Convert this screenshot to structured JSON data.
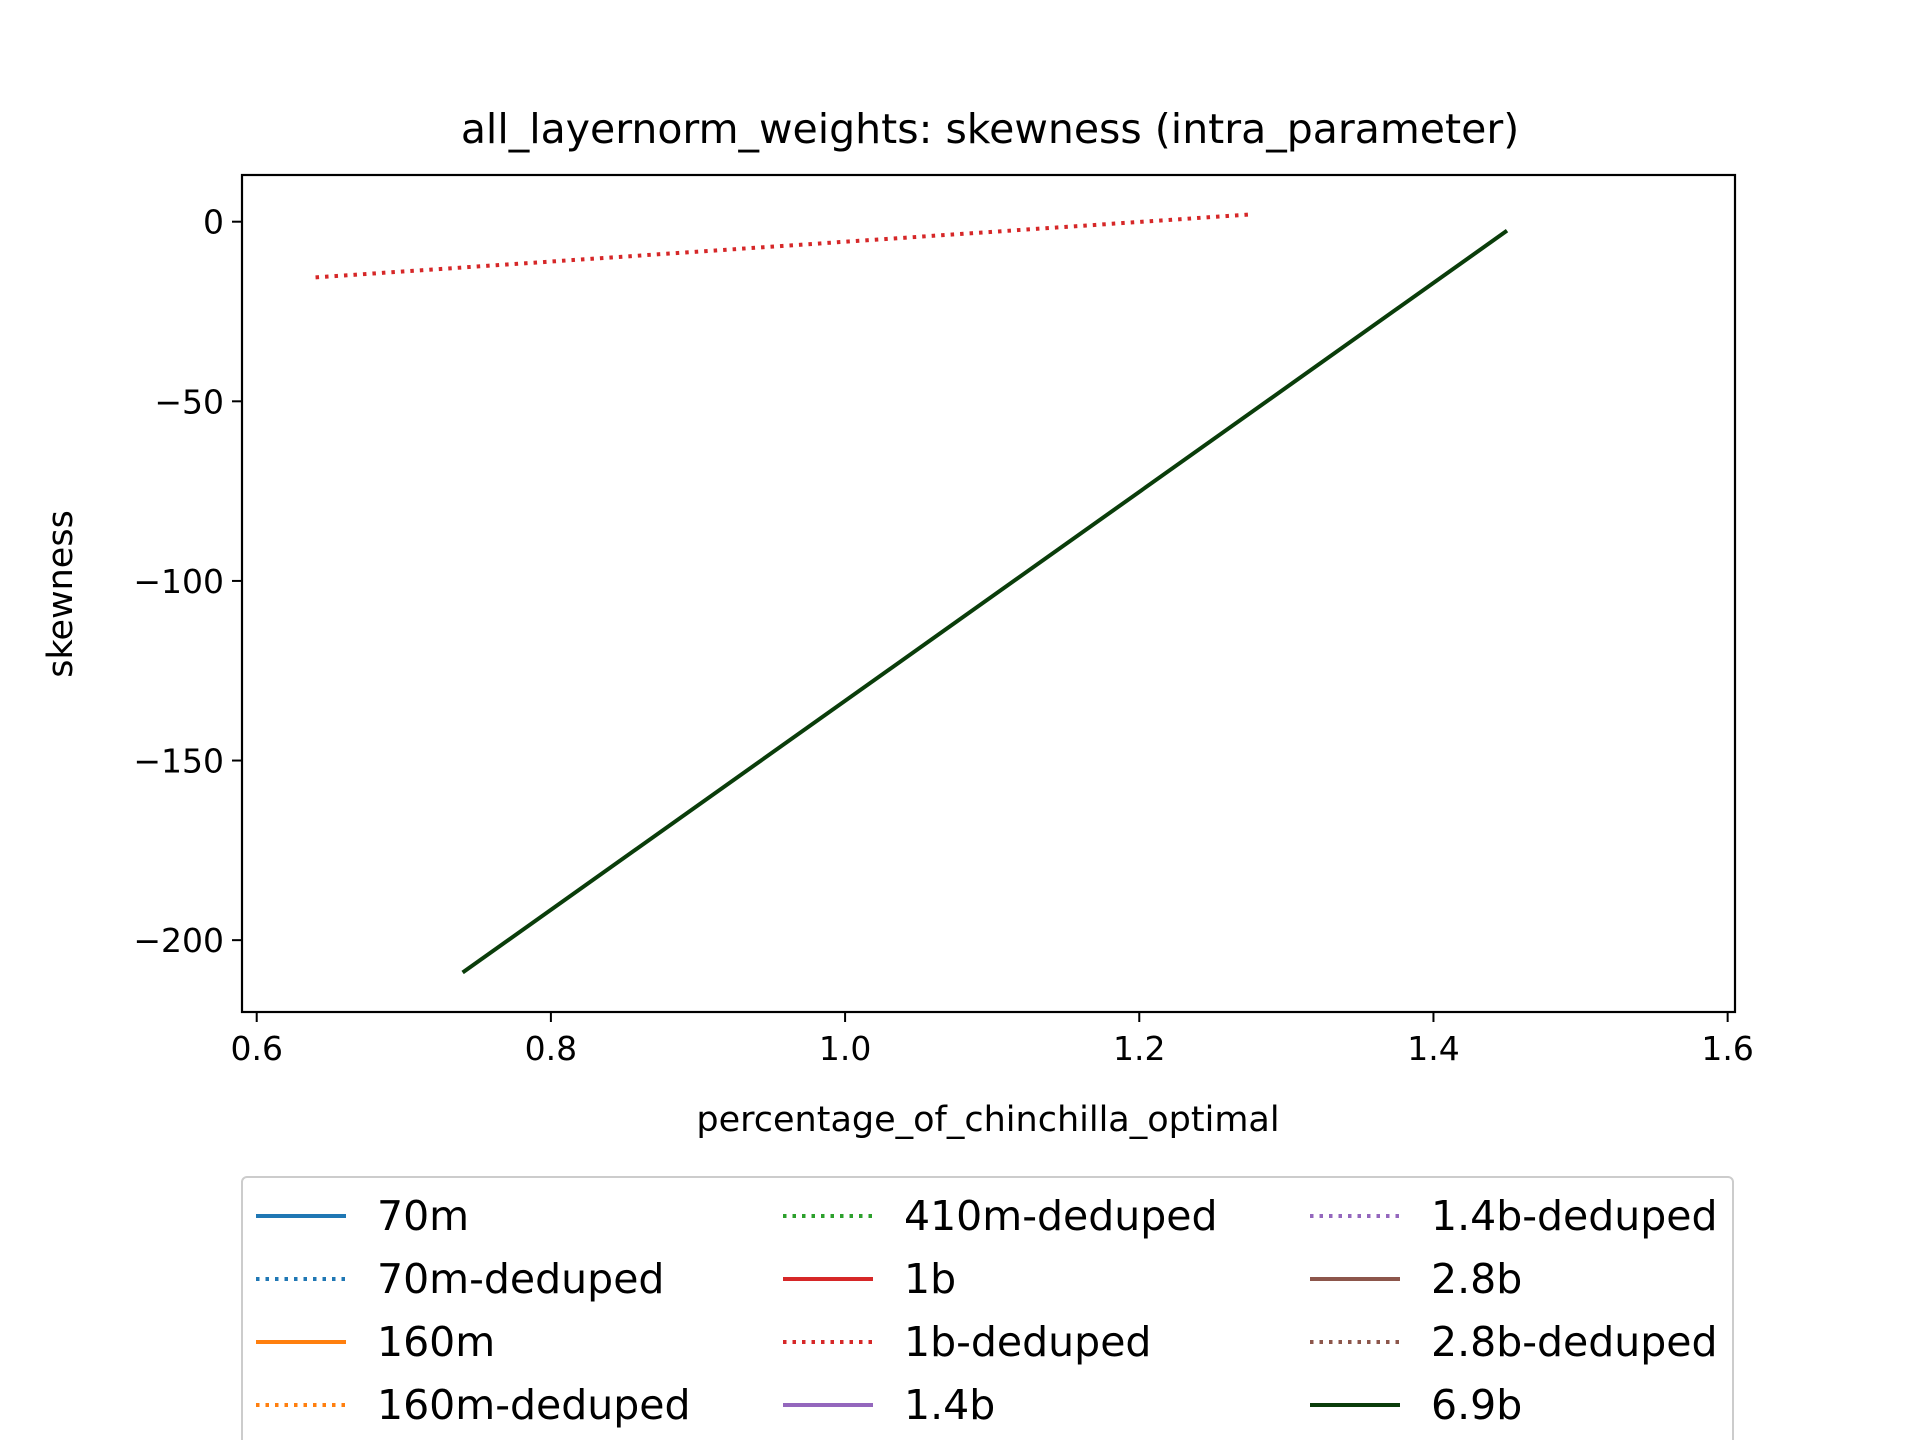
{
  "chart_data": {
    "type": "line",
    "title": "all_layernorm_weights: skewness (intra_parameter)",
    "xlabel": "percentage_of_chinchilla_optimal",
    "ylabel": "skewness",
    "xlim": [
      0.59,
      1.605
    ],
    "ylim": [
      -220,
      13
    ],
    "xticks": [
      0.6,
      0.8,
      1.0,
      1.2,
      1.4,
      1.6
    ],
    "xtick_labels": [
      "0.6",
      "0.8",
      "1.0",
      "1.2",
      "1.4",
      "1.6"
    ],
    "yticks": [
      0,
      -50,
      -100,
      -150,
      -200
    ],
    "ytick_labels": [
      "0",
      "−50",
      "−100",
      "−150",
      "−200"
    ],
    "grid": false,
    "legend_position": "below plot",
    "series": [
      {
        "name": "70m",
        "color": "#1f77b4",
        "style": "solid",
        "x": [],
        "y": []
      },
      {
        "name": "70m-deduped",
        "color": "#1f77b4",
        "style": "dotted",
        "x": [],
        "y": []
      },
      {
        "name": "160m",
        "color": "#ff7f0e",
        "style": "solid",
        "x": [],
        "y": []
      },
      {
        "name": "160m-deduped",
        "color": "#ff7f0e",
        "style": "dotted",
        "x": [],
        "y": []
      },
      {
        "name": "410m-deduped",
        "color": "#2ca02c",
        "style": "dotted",
        "x": [],
        "y": []
      },
      {
        "name": "1b",
        "color": "#d62728",
        "style": "solid",
        "x": [],
        "y": []
      },
      {
        "name": "1b-deduped",
        "color": "#d62728",
        "style": "dotted",
        "x": [
          0.64,
          1.275
        ],
        "y": [
          -15.5,
          2.0
        ]
      },
      {
        "name": "1.4b",
        "color": "#9467bd",
        "style": "solid",
        "x": [],
        "y": []
      },
      {
        "name": "1.4b-deduped",
        "color": "#9467bd",
        "style": "dotted",
        "x": [],
        "y": []
      },
      {
        "name": "2.8b",
        "color": "#8c564b",
        "style": "solid",
        "x": [],
        "y": []
      },
      {
        "name": "2.8b-deduped",
        "color": "#8c564b",
        "style": "dotted",
        "x": [],
        "y": []
      },
      {
        "name": "6.9b",
        "color": "#0a3d0a",
        "style": "solid",
        "x": [
          0.74,
          1.45
        ],
        "y": [
          -209,
          -2.5
        ]
      }
    ]
  }
}
